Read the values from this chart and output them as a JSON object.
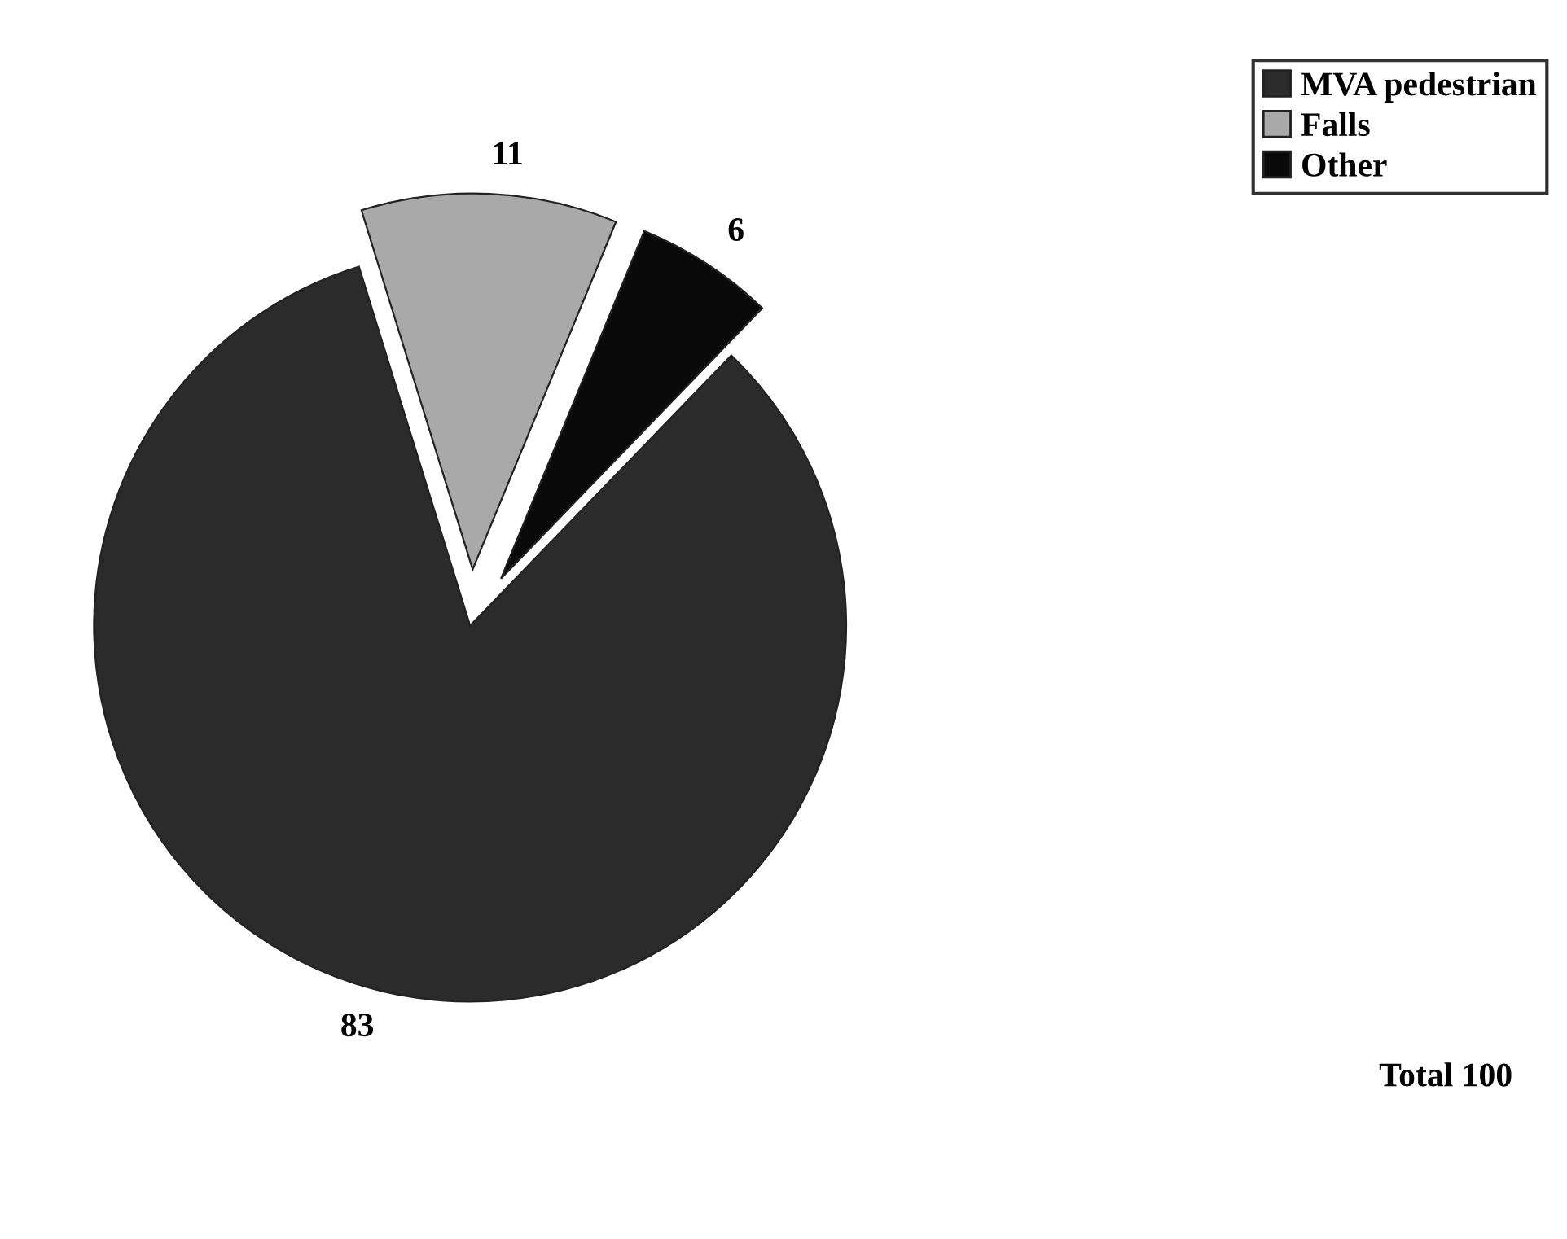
{
  "chart_data": {
    "type": "pie",
    "categories": [
      "MVA pedestrian",
      "Falls",
      "Other"
    ],
    "values": [
      83,
      11,
      6
    ],
    "colors": [
      "#2b2b2b",
      "#a9a9a9",
      "#0a0a0a"
    ],
    "data_labels": true,
    "legend": "top right",
    "annotations": [
      "Total 100"
    ]
  }
}
